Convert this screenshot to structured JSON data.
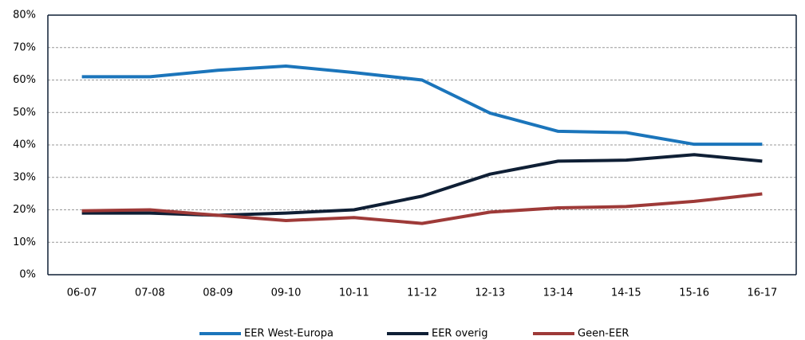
{
  "chart_data": {
    "type": "line",
    "categories": [
      "06-07",
      "07-08",
      "08-09",
      "09-10",
      "10-11",
      "11-12",
      "12-13",
      "13-14",
      "14-15",
      "15-16",
      "16-17"
    ],
    "series": [
      {
        "name": "EER West-Europa",
        "color": "#1b75bb",
        "values": [
          61,
          61,
          63,
          64.3,
          62.3,
          60,
          49.8,
          44.2,
          43.8,
          40.2,
          40.2
        ]
      },
      {
        "name": "EER overig",
        "color": "#0f1f35",
        "values": [
          19,
          19,
          18.3,
          19,
          20,
          24.2,
          31,
          35,
          35.3,
          37,
          35
        ]
      },
      {
        "name": "Geen-EER",
        "color": "#9e3a38",
        "values": [
          19.7,
          20,
          18.3,
          16.7,
          17.6,
          15.8,
          19.3,
          20.6,
          21,
          22.6,
          24.9
        ]
      }
    ],
    "ylim": [
      0,
      80
    ],
    "yticks": [
      {
        "value": 0,
        "label": "0%"
      },
      {
        "value": 10,
        "label": "10%"
      },
      {
        "value": 20,
        "label": "20%"
      },
      {
        "value": 30,
        "label": "30%"
      },
      {
        "value": 40,
        "label": "40%"
      },
      {
        "value": 50,
        "label": "50%"
      },
      {
        "value": 60,
        "label": "60%"
      },
      {
        "value": 70,
        "label": "70%"
      },
      {
        "value": 80,
        "label": "80%"
      }
    ],
    "grid": true,
    "legend": "bottom"
  }
}
